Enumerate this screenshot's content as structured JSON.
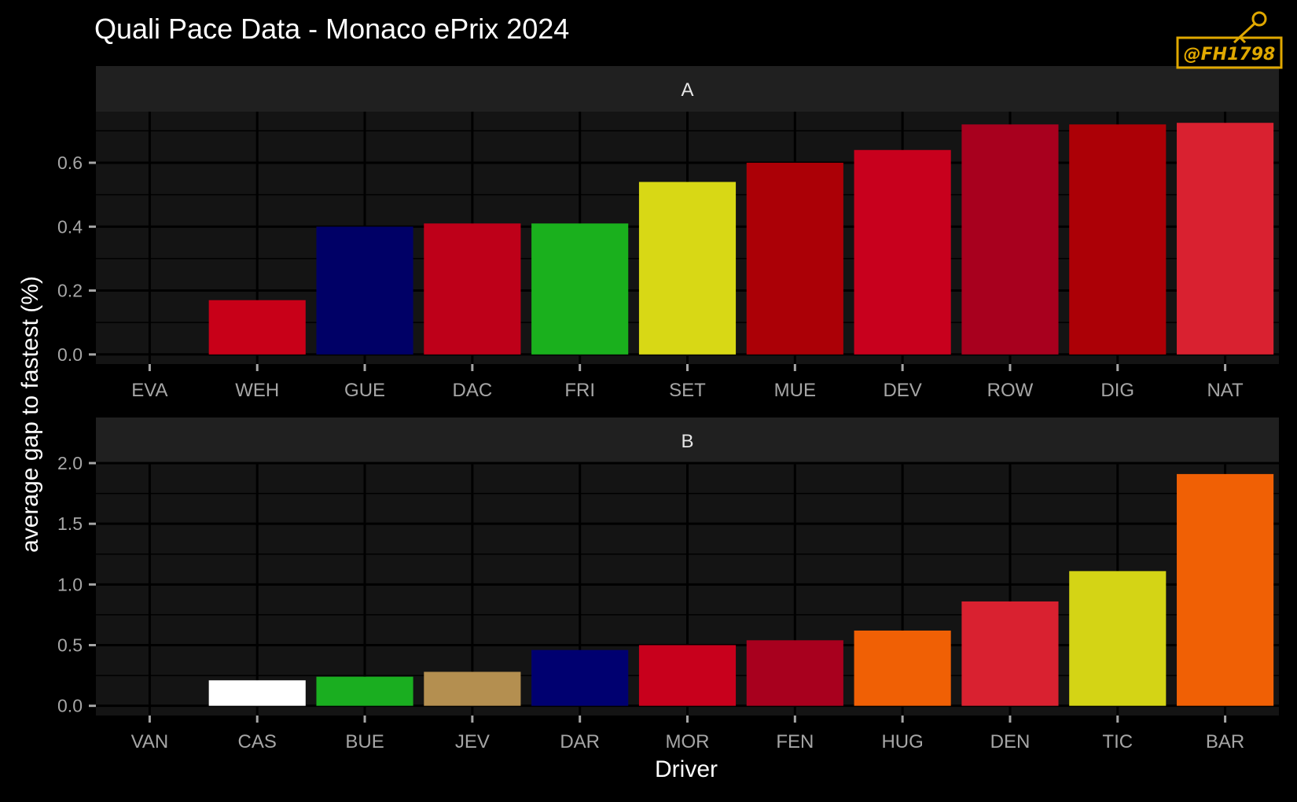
{
  "title": "Quali Pace Data - Monaco ePrix 2024",
  "watermark_text": "@FH1798",
  "colors": {
    "background": "#000000",
    "panel": "#141414",
    "strip": "#202020",
    "grid": "#000000",
    "tick_text": "#a6a6a6",
    "text": "#ffffff",
    "watermark": "#e0a800"
  },
  "chart_data": {
    "type": "bar",
    "title": "Quali Pace Data - Monaco ePrix 2024",
    "xlabel": "Driver",
    "ylabel": "average gap to fastest (%)",
    "grid": true,
    "legend": "none",
    "panels": [
      {
        "label": "A",
        "categories": [
          "EVA",
          "WEH",
          "GUE",
          "DAC",
          "FRI",
          "SET",
          "MUE",
          "DEV",
          "ROW",
          "DIG",
          "NAT"
        ],
        "values": [
          0.0,
          0.17,
          0.4,
          0.41,
          0.41,
          0.54,
          0.6,
          0.64,
          0.72,
          0.72,
          0.725
        ],
        "colors": [
          "#c80018",
          "#c80018",
          "#000066",
          "#be0019",
          "#1ab01d",
          "#d8d815",
          "#ab0006",
          "#c8001d",
          "#a8001e",
          "#ac0006",
          "#d92130"
        ],
        "yticks": [
          0.0,
          0.2,
          0.4,
          0.6
        ],
        "ytick_labels": [
          "0.0",
          "0.2",
          "0.4",
          "0.6"
        ],
        "ylim": [
          -0.03,
          0.76
        ]
      },
      {
        "label": "B",
        "categories": [
          "VAN",
          "CAS",
          "BUE",
          "JEV",
          "DAR",
          "MOR",
          "FEN",
          "HUG",
          "DEN",
          "TIC",
          "BAR"
        ],
        "values": [
          0.0,
          0.21,
          0.24,
          0.28,
          0.46,
          0.5,
          0.54,
          0.62,
          0.86,
          1.11,
          1.91
        ],
        "colors": [
          "#c80018",
          "#ffffff",
          "#1aae20",
          "#b48f50",
          "#000070",
          "#c8001c",
          "#a8001e",
          "#f06005",
          "#d92130",
          "#d4d415",
          "#f06005"
        ],
        "yticks": [
          0.0,
          0.5,
          1.0,
          1.5,
          2.0
        ],
        "ytick_labels": [
          "0.0",
          "0.5",
          "1.0",
          "1.5",
          "2.0"
        ],
        "ylim": [
          -0.08,
          2.0
        ]
      }
    ]
  }
}
